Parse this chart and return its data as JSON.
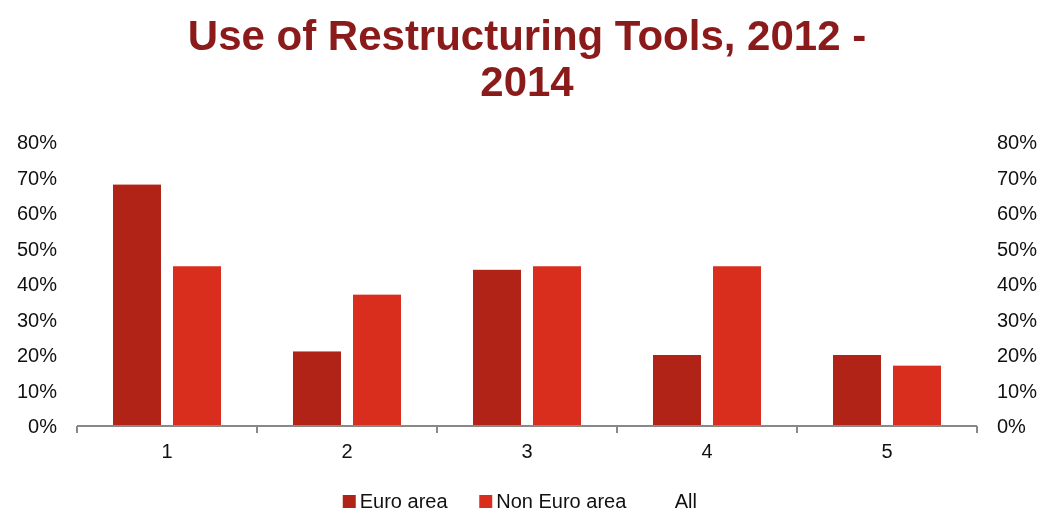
{
  "chart_data": {
    "type": "bar",
    "title": "Use of Restructuring Tools, 2012 - 2014",
    "categories": [
      "1",
      "2",
      "3",
      "4",
      "5"
    ],
    "series": [
      {
        "name": "Euro area",
        "color": "#b22317",
        "values": [
          68,
          21,
          44,
          20,
          20
        ]
      },
      {
        "name": "Non Euro area",
        "color": "#d92e1e",
        "values": [
          45,
          37,
          45,
          45,
          17
        ]
      },
      {
        "name": "All",
        "values": [
          null,
          null,
          null,
          null,
          null
        ]
      }
    ],
    "ylim": [
      0,
      80
    ],
    "yticks": [
      {
        "value": 0,
        "label": "0%"
      },
      {
        "value": 10,
        "label": "10%"
      },
      {
        "value": 20,
        "label": "20%"
      },
      {
        "value": 30,
        "label": "30%"
      },
      {
        "value": 40,
        "label": "40%"
      },
      {
        "value": 50,
        "label": "50%"
      },
      {
        "value": 60,
        "label": "60%"
      },
      {
        "value": 70,
        "label": "70%"
      },
      {
        "value": 80,
        "label": "80%"
      }
    ],
    "y2lim": [
      0,
      80
    ],
    "y2ticks": [
      {
        "value": 0,
        "label": "0%"
      },
      {
        "value": 10,
        "label": "10%"
      },
      {
        "value": 20,
        "label": "20%"
      },
      {
        "value": 30,
        "label": "30%"
      },
      {
        "value": 40,
        "label": "40%"
      },
      {
        "value": 50,
        "label": "50%"
      },
      {
        "value": 60,
        "label": "60%"
      },
      {
        "value": 70,
        "label": "70%"
      },
      {
        "value": 80,
        "label": "80%"
      }
    ],
    "grid": false,
    "legend": "bottom"
  }
}
